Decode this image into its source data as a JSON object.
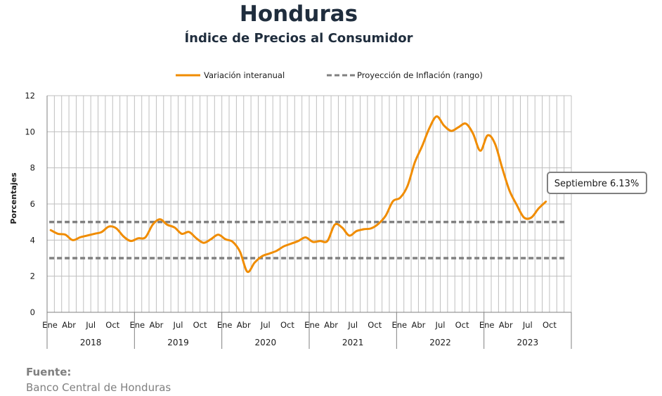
{
  "header": {
    "title": "Honduras",
    "subtitle": "Índice de Precios al Consumidor"
  },
  "source": {
    "label": "Fuente:",
    "text": "Banco Central de Honduras"
  },
  "callout": {
    "text": "Septiembre 6.13%"
  },
  "colors": {
    "series": "#f08c00",
    "projection": "#808080",
    "grid": "#bfbfbf"
  },
  "chart_data": {
    "type": "line",
    "title": "",
    "ylabel": "Porcentajes",
    "xlabel": "",
    "ylim": [
      0,
      12
    ],
    "yticks": [
      0,
      2,
      4,
      6,
      8,
      10,
      12
    ],
    "grid": true,
    "legend_position": "top",
    "month_tick_labels": [
      "Ene",
      "Abr",
      "Jul",
      "Oct"
    ],
    "years": [
      "2018",
      "2019",
      "2020",
      "2021",
      "2022",
      "2023"
    ],
    "x": [
      "2018-01",
      "2018-02",
      "2018-03",
      "2018-04",
      "2018-05",
      "2018-06",
      "2018-07",
      "2018-08",
      "2018-09",
      "2018-10",
      "2018-11",
      "2018-12",
      "2019-01",
      "2019-02",
      "2019-03",
      "2019-04",
      "2019-05",
      "2019-06",
      "2019-07",
      "2019-08",
      "2019-09",
      "2019-10",
      "2019-11",
      "2019-12",
      "2020-01",
      "2020-02",
      "2020-03",
      "2020-04",
      "2020-05",
      "2020-06",
      "2020-07",
      "2020-08",
      "2020-09",
      "2020-10",
      "2020-11",
      "2020-12",
      "2021-01",
      "2021-02",
      "2021-03",
      "2021-04",
      "2021-05",
      "2021-06",
      "2021-07",
      "2021-08",
      "2021-09",
      "2021-10",
      "2021-11",
      "2021-12",
      "2022-01",
      "2022-02",
      "2022-03",
      "2022-04",
      "2022-05",
      "2022-06",
      "2022-07",
      "2022-08",
      "2022-09",
      "2022-10",
      "2022-11",
      "2022-12",
      "2023-01",
      "2023-02",
      "2023-03",
      "2023-04",
      "2023-05",
      "2023-06",
      "2023-07",
      "2023-08",
      "2023-09"
    ],
    "series": [
      {
        "name": "Variación interanual",
        "style": "solid",
        "values": [
          4.55,
          4.35,
          4.3,
          4.0,
          4.15,
          4.25,
          4.35,
          4.45,
          4.75,
          4.65,
          4.2,
          3.95,
          4.1,
          4.15,
          4.85,
          5.15,
          4.85,
          4.7,
          4.35,
          4.45,
          4.1,
          3.85,
          4.05,
          4.3,
          4.05,
          3.9,
          3.35,
          2.25,
          2.75,
          3.1,
          3.25,
          3.4,
          3.65,
          3.8,
          3.95,
          4.15,
          3.9,
          3.95,
          3.95,
          4.85,
          4.7,
          4.25,
          4.5,
          4.6,
          4.65,
          4.9,
          5.35,
          6.15,
          6.35,
          7.0,
          8.3,
          9.2,
          10.2,
          10.85,
          10.35,
          10.05,
          10.25,
          10.45,
          9.9,
          8.95,
          9.8,
          9.35,
          8.0,
          6.75,
          5.95,
          5.25,
          5.25,
          5.75,
          6.13
        ]
      },
      {
        "name": "Proyección de Inflación (rango)",
        "style": "dashed",
        "upper": 5.0,
        "lower": 3.0
      }
    ]
  }
}
